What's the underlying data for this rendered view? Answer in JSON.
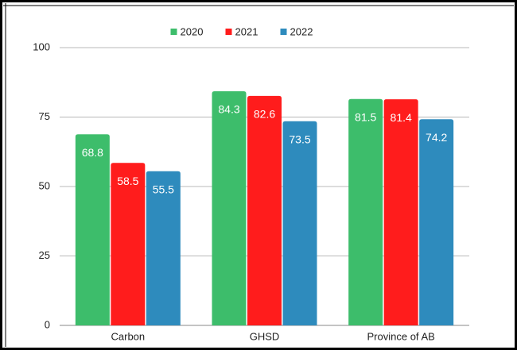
{
  "chart_data": {
    "type": "bar",
    "categories": [
      "Carbon",
      "GHSD",
      "Province of AB"
    ],
    "series": [
      {
        "name": "2020",
        "color": "#3dbd6b",
        "values": [
          68.8,
          84.3,
          81.5
        ]
      },
      {
        "name": "2021",
        "color": "#ff1c1c",
        "values": [
          58.5,
          82.6,
          81.4
        ]
      },
      {
        "name": "2022",
        "color": "#2e8bbd",
        "values": [
          55.5,
          73.5,
          74.2
        ]
      }
    ],
    "ylim": [
      0,
      100
    ],
    "yticks": [
      0,
      25,
      50,
      75,
      100
    ],
    "grid": true,
    "legend": "top"
  }
}
